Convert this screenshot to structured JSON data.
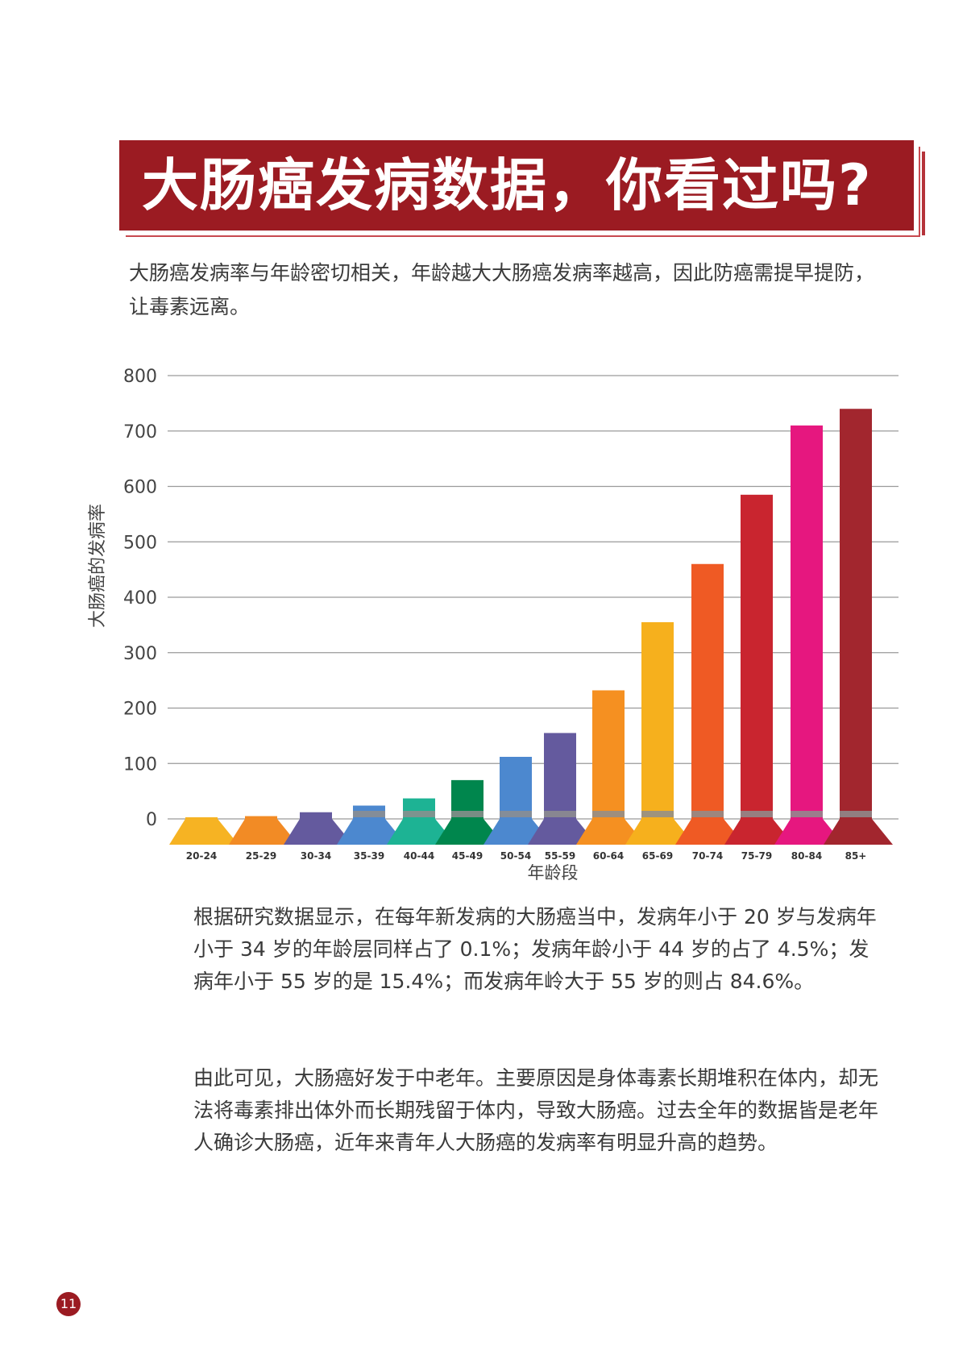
{
  "title": "大肠癌发病数据，你看过吗?",
  "intro": "大肠癌发病率与年龄密切相关，年龄越大大肠癌发病率越高，因此防癌需提早提防，让毒素远离。",
  "chart_data": {
    "type": "bar",
    "title": "",
    "xlabel": "年龄段",
    "ylabel": "大肠癌的发病率",
    "ylim": [
      0,
      800
    ],
    "yticks": [
      "0",
      "100",
      "200",
      "300",
      "400",
      "500",
      "600",
      "700",
      "800"
    ],
    "grid": true,
    "categories": [
      "20-24",
      "25-29",
      "30-34",
      "35-39",
      "40-44",
      "45-49",
      "50-54",
      "55-59",
      "60-64",
      "65-69",
      "70-74",
      "75-79",
      "80-84",
      "85+"
    ],
    "values": [
      1,
      5,
      12,
      24,
      37,
      70,
      112,
      155,
      232,
      355,
      460,
      585,
      710,
      740
    ],
    "colors": [
      "#f6b323",
      "#f28b25",
      "#645a9e",
      "#4c88cf",
      "#1db394",
      "#00864d",
      "#4c88cf",
      "#645a9e",
      "#f59021",
      "#f6b01d",
      "#ef5a24",
      "#c9252f",
      "#e6177f",
      "#a2262e"
    ]
  },
  "paragraph1": "根据研究数据显示，在每年新发病的大肠癌当中，发病年小于 20 岁与发病年小于 34 岁的年龄层同样占了 0.1%；发病年龄小于 44 岁的占了 4.5%；发病年小于 55 岁的是 15.4%；而发病年岭大于 55 岁的则占 84.6%。",
  "paragraph2": "由此可见，大肠癌好发于中老年。主要原因是身体毒素长期堆积在体内，却无法将毒素排出体外而长期残留于体内，导致大肠癌。过去全年的数据皆是老年人确诊大肠癌，近年来青年人大肠癌的发病率有明显升高的趋势。",
  "page_number": "11"
}
